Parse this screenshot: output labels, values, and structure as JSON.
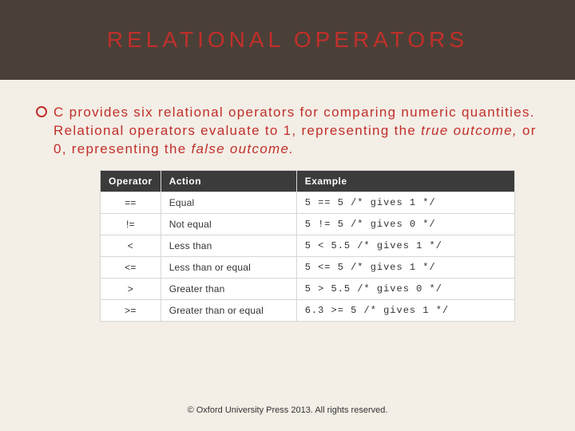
{
  "title": "RELATIONAL OPERATORS",
  "paragraph": {
    "pre": "C provides six relational operators for comparing numeric quantities. Relational operators evaluate to 1, representing the ",
    "i1": "true outcome,",
    "mid": " or 0, representing the ",
    "i2": "false outcome.",
    "post": ""
  },
  "table": {
    "headers": [
      "Operator",
      "Action",
      "Example"
    ],
    "rows": [
      [
        "==",
        "Equal",
        "5 == 5 /* gives 1 */"
      ],
      [
        "!=",
        "Not equal",
        "5 != 5 /* gives 0 */"
      ],
      [
        "<",
        "Less than",
        "5 < 5.5 /* gives 1 */"
      ],
      [
        "<=",
        "Less than or equal",
        "5 <= 5 /* gives 1 */"
      ],
      [
        ">",
        "Greater than",
        "5 > 5.5 /* gives 0 */"
      ],
      [
        ">=",
        "Greater than or equal",
        "6.3 >= 5 /* gives 1 */"
      ]
    ]
  },
  "footer": "© Oxford University Press 2013. All rights reserved.",
  "colors": {
    "header_bg": "#4a4038",
    "accent": "#c12f2a",
    "slide_bg": "#f3eee6",
    "table_header_bg": "#3b3b3b",
    "table_border": "#d6d6d6"
  }
}
